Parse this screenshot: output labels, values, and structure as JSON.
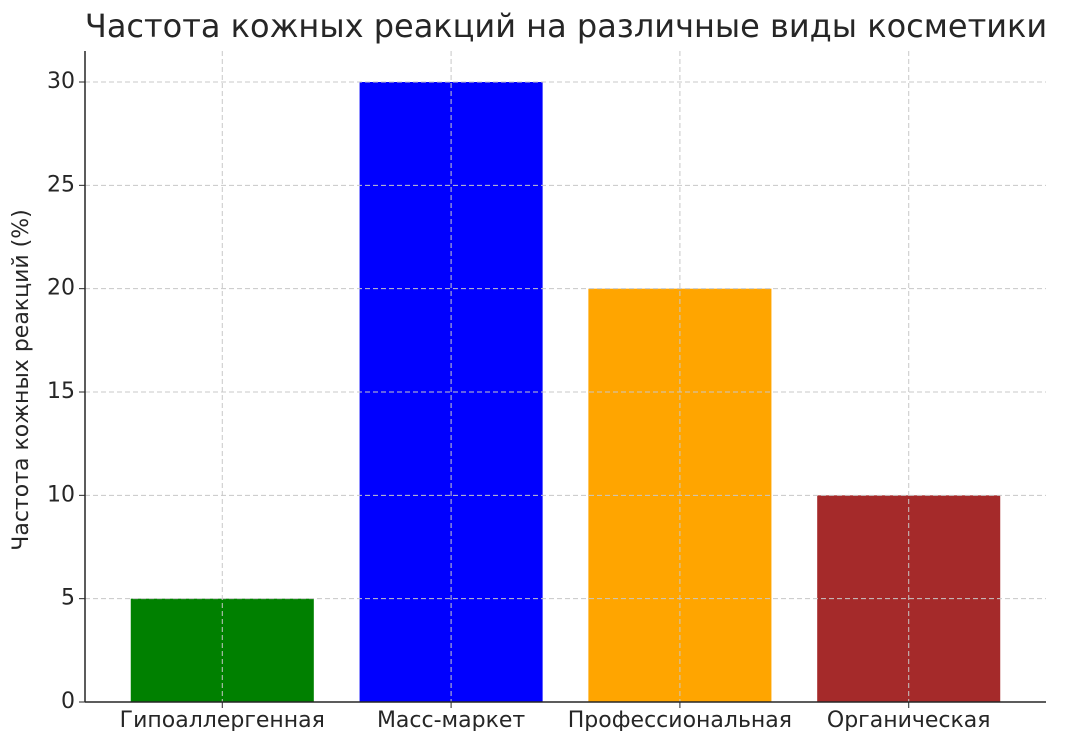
{
  "chart_data": {
    "type": "bar",
    "title": "Частота кожных реакций на различные виды косметики",
    "y_label": "Частота кожных реакций (%)",
    "categories": [
      "Гипоаллергенная",
      "Масс-маркет",
      "Профессиональная",
      "Органическая"
    ],
    "values": [
      5,
      30,
      20,
      10
    ],
    "colors": [
      "#008000",
      "#0000ff",
      "#ffa500",
      "#a52a2a"
    ],
    "ylim": [
      0,
      31.5
    ],
    "yticks": [
      0,
      5,
      10,
      15,
      20,
      25,
      30
    ],
    "grid": true
  }
}
